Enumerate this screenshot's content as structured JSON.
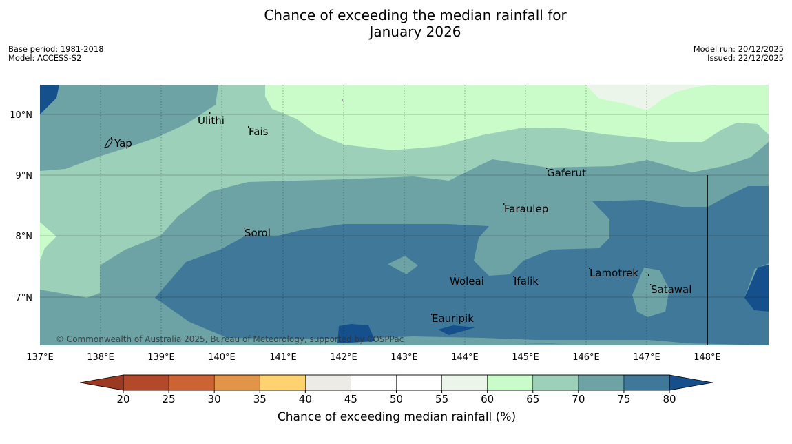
{
  "title": {
    "line1": "Chance of exceeding the median rainfall for",
    "line2": "January 2026"
  },
  "meta_left": {
    "base_period": "Base period: 1981-2018",
    "model": "Model: ACCESS-S2"
  },
  "meta_right": {
    "model_run": "Model run: 20/12/2025",
    "issued": "Issued: 22/12/2025"
  },
  "map": {
    "lon_ticks": [
      "137°E",
      "138°E",
      "139°E",
      "140°E",
      "141°E",
      "142°E",
      "143°E",
      "144°E",
      "145°E",
      "146°E",
      "147°E",
      "148°E"
    ],
    "lat_ticks": [
      "10°N",
      "9°N",
      "8°N",
      "7°N"
    ],
    "places": [
      "Yap",
      "Ulithi",
      "Fais",
      "Gaferut",
      "Faraulep",
      "Sorol",
      "Woleai",
      "Ifalik",
      "Lamotrek",
      "Satawal",
      "Eauripik"
    ],
    "copyright": "© Commonwealth of Australia 2025, Bureau of Meteorology, supported by COSPPac",
    "colors": {
      "p45_55": "#ffffff",
      "p55_60": "#ebf5ea",
      "p60_65": "#c9fcc9",
      "p65_70": "#9dd0b8",
      "p70_75": "#6ea3a6",
      "p75_80": "#3f7898",
      "p80_up": "#154f8c"
    }
  },
  "colorbar": {
    "ticks": [
      "20",
      "25",
      "30",
      "35",
      "40",
      "45",
      "50",
      "55",
      "60",
      "65",
      "70",
      "75",
      "80"
    ],
    "colors": [
      "#b3482a",
      "#cd6333",
      "#e29448",
      "#fdd26f",
      "#ecebe5",
      "#ffffff",
      "#ffffff",
      "#ebf5ea",
      "#c9fcc9",
      "#9dd0b8",
      "#6ea3a6",
      "#3f7898"
    ],
    "low_color": "#9c3a21",
    "high_color": "#154f8c",
    "label": "Chance of exceeding median rainfall (%)"
  }
}
